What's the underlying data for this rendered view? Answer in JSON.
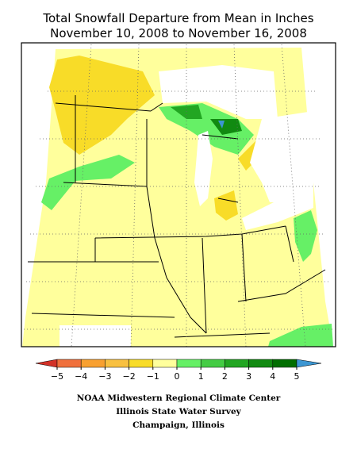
{
  "title": [
    "Total Snowfall Departure from Mean in Inches",
    "November 10, 2008 to November 16, 2008"
  ],
  "legend": {
    "labels": [
      "−5",
      "−4",
      "−3",
      "−2",
      "−1",
      "0",
      "1",
      "2",
      "3",
      "4",
      "5"
    ],
    "colors": [
      "#d23228",
      "#f0703c",
      "#f8a030",
      "#f8c040",
      "#f8dc28",
      "#ffff9c",
      "#66f066",
      "#44cc44",
      "#22a622",
      "#118a11",
      "#006e00",
      "#3c96d2"
    ]
  },
  "credits": [
    "NOAA Midwestern Regional Climate Center",
    "Illinois State Water Survey",
    "Champaign, Illinois"
  ]
}
